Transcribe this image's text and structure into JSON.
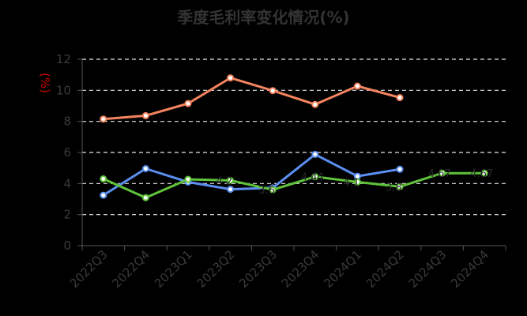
{
  "chart_data": {
    "type": "line",
    "title": "季度毛利率变化情况(%)",
    "ylabel": "(%)",
    "xlabel": "",
    "ylim": [
      0,
      12
    ],
    "yticks": [
      0,
      2,
      4,
      6,
      8,
      10,
      12
    ],
    "grid": true,
    "categories": [
      "2022Q3",
      "2022Q4",
      "2023Q1",
      "2023Q2",
      "2023Q3",
      "2023Q4",
      "2024Q1",
      "2024Q2",
      "2024Q3",
      "2024Q4"
    ],
    "series": [
      {
        "color": "#f4845f",
        "values": [
          8.15,
          8.37,
          9.15,
          10.8,
          9.98,
          9.09,
          10.27,
          9.53,
          null,
          null
        ]
      },
      {
        "color": "#5b8ff0",
        "values": [
          3.25,
          4.96,
          4.1,
          3.63,
          3.72,
          5.88,
          4.47,
          4.92,
          null,
          null
        ]
      },
      {
        "color": "#5fc33b",
        "values": [
          4.3,
          3.09,
          4.27,
          4.2,
          3.6,
          4.44,
          4.1,
          3.8,
          4.67,
          4.67
        ],
        "labels": [
          "",
          "",
          "",
          "4.2",
          "3.6",
          "4.44",
          "4.1",
          "3.8",
          "4.67",
          "4.67"
        ]
      }
    ]
  }
}
